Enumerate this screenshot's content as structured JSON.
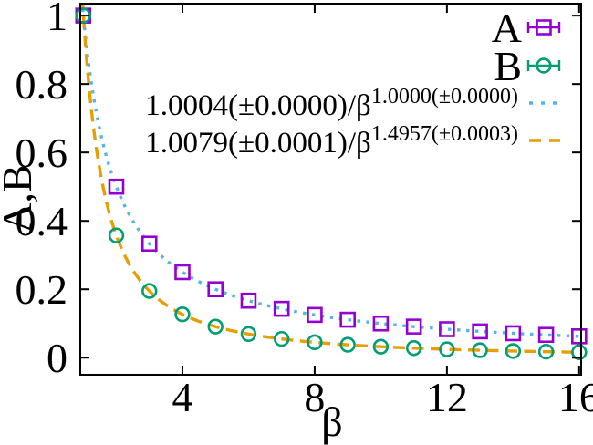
{
  "figure": {
    "background": "#ffffff",
    "border_color": "#000000"
  },
  "chart_data": {
    "type": "scatter",
    "title": "",
    "xlabel": "β",
    "ylabel": "A,B",
    "xlim": [
      0.91,
      16.06
    ],
    "ylim": [
      -0.05,
      1.035
    ],
    "grid": false,
    "legend_position": "top-right-inside",
    "xticks": {
      "values": [
        4,
        8,
        12,
        16
      ],
      "labels": [
        "4",
        "8",
        "12",
        "16"
      ]
    },
    "yticks": {
      "values": [
        0,
        0.2,
        0.4,
        0.6,
        0.8,
        1
      ],
      "labels": [
        "0",
        "0.2",
        "0.4",
        "0.6",
        "0.8",
        "1"
      ]
    },
    "series": [
      {
        "name": "A",
        "marker": "square",
        "color": "#9400d3",
        "x": [
          1,
          2,
          3,
          4,
          5,
          6,
          7,
          8,
          9,
          10,
          11,
          12,
          13,
          14,
          15,
          16
        ],
        "y": [
          1.0,
          0.5,
          0.3333,
          0.25,
          0.2,
          0.1667,
          0.1429,
          0.125,
          0.1111,
          0.1,
          0.0909,
          0.0833,
          0.0769,
          0.0714,
          0.0667,
          0.0625
        ]
      },
      {
        "name": "B",
        "marker": "circle",
        "color": "#009e73",
        "x": [
          1,
          2,
          3,
          4,
          5,
          6,
          7,
          8,
          9,
          10,
          11,
          12,
          13,
          14,
          15,
          16
        ],
        "y": [
          1.0,
          0.3575,
          0.195,
          0.1268,
          0.0908,
          0.0692,
          0.0549,
          0.045,
          0.0377,
          0.0322,
          0.028,
          0.0246,
          0.0218,
          0.0195,
          0.0176,
          0.016
        ]
      }
    ],
    "fits": [
      {
        "label_base": "1.0004(±0.0000)/β",
        "label_sup": "1.0000(±0.0000)",
        "amplitude": 1.0004,
        "exponent": 1.0,
        "color": "#56b4e9",
        "style": "dotted"
      },
      {
        "label_base": "1.0079(±0.0001)/β",
        "label_sup": "1.4957(±0.0003)",
        "amplitude": 1.0079,
        "exponent": 1.4957,
        "color": "#e69f00",
        "style": "dashed"
      }
    ]
  }
}
